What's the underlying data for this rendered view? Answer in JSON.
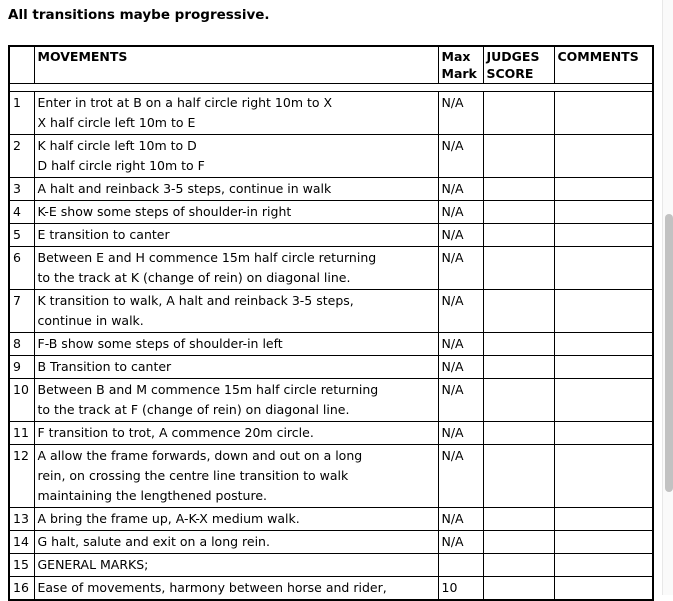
{
  "title": "All transitions maybe progressive.",
  "table": {
    "headers": {
      "num": "",
      "movements": "MOVEMENTS",
      "max_mark": "Max\nMark",
      "judges_score": "JUDGES\nSCORE",
      "comments": "COMMENTS"
    },
    "rows": [
      {
        "num": "1",
        "movement": "Enter in trot at B on a half circle right 10m to X\nX half circle left 10m to E",
        "max_mark": "N/A",
        "judges_score": "",
        "comments": ""
      },
      {
        "num": "2",
        "movement": "K half circle left 10m to D\nD half circle right 10m to F",
        "max_mark": "N/A",
        "judges_score": "",
        "comments": ""
      },
      {
        "num": "3",
        "movement": "A halt and reinback 3-5 steps, continue in walk",
        "max_mark": "N/A",
        "judges_score": "",
        "comments": ""
      },
      {
        "num": "4",
        "movement": "K-E show some steps of shoulder-in right",
        "max_mark": "N/A",
        "judges_score": "",
        "comments": ""
      },
      {
        "num": "5",
        "movement": "E transition to canter",
        "max_mark": "N/A",
        "judges_score": "",
        "comments": ""
      },
      {
        "num": "6",
        "movement": "Between E and H commence 15m half circle returning\nto the track at K (change of rein) on diagonal line.",
        "max_mark": "N/A",
        "judges_score": "",
        "comments": ""
      },
      {
        "num": "7",
        "movement": "K transition to walk, A halt and reinback 3-5 steps,\ncontinue in walk.",
        "max_mark": "N/A",
        "judges_score": "",
        "comments": ""
      },
      {
        "num": "8",
        "movement": "F-B show some steps of shoulder-in left",
        "max_mark": "N/A",
        "judges_score": "",
        "comments": ""
      },
      {
        "num": "9",
        "movement": "B Transition to canter",
        "max_mark": "N/A",
        "judges_score": "",
        "comments": ""
      },
      {
        "num": "10",
        "movement": "Between B and M commence 15m half circle returning\nto the track at F (change of rein) on diagonal line.",
        "max_mark": "N/A",
        "judges_score": "",
        "comments": ""
      },
      {
        "num": "11",
        "movement": "F transition to trot, A commence 20m circle.",
        "max_mark": "N/A",
        "judges_score": "",
        "comments": ""
      },
      {
        "num": "12",
        "movement": "A allow the frame forwards, down and out on a long\nrein, on crossing the centre line transition to walk\nmaintaining the lengthened posture.",
        "max_mark": "N/A",
        "judges_score": "",
        "comments": ""
      },
      {
        "num": "13",
        "movement": "A bring the frame up, A-K-X medium walk.",
        "max_mark": "N/A",
        "judges_score": "",
        "comments": ""
      },
      {
        "num": "14",
        "movement": "G halt, salute and exit on a long rein.",
        "max_mark": "N/A",
        "judges_score": "",
        "comments": ""
      },
      {
        "num": "15",
        "movement": "GENERAL MARKS;",
        "max_mark": "",
        "judges_score": "",
        "comments": ""
      },
      {
        "num": "16",
        "movement": "Ease of movements, harmony between horse and rider,",
        "max_mark": "10",
        "judges_score": "",
        "comments": ""
      }
    ]
  },
  "colors": {
    "text_color": "#000000",
    "border_color": "#000000",
    "bg_color": "#ffffff",
    "scrollbar_track": "#fafafa",
    "scrollbar_edge": "#e8e8e8",
    "scrollbar_thumb": "#c2c2c2"
  }
}
